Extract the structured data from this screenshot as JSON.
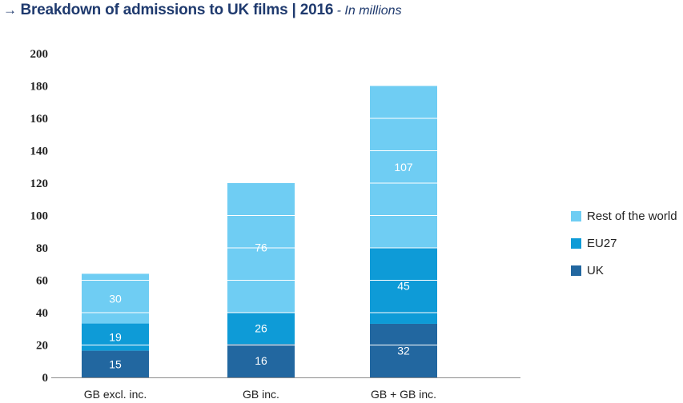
{
  "header": {
    "arrow": "→",
    "title": "Breakdown of admissions to UK films | 2016",
    "subtitle": "- In millions"
  },
  "chart_data": {
    "type": "bar",
    "stacked": true,
    "title": "Breakdown of admissions to UK films | 2016",
    "subtitle": "In millions",
    "categories": [
      "GB excl. inc.",
      "GB inc.",
      "GB + GB inc."
    ],
    "series": [
      {
        "name": "UK",
        "values": [
          15,
          16,
          32
        ],
        "color": "#2267a0"
      },
      {
        "name": "EU27",
        "values": [
          19,
          26,
          45
        ],
        "color": "#0e9bd7"
      },
      {
        "name": "Rest of the world",
        "values": [
          30,
          76,
          107
        ],
        "color": "#6fcdf3"
      }
    ],
    "segment_totals": [
      [
        16.5,
        33.3,
        64
      ],
      [
        20.6,
        40.3,
        120
      ],
      [
        33.1,
        80.0,
        180
      ]
    ],
    "yticks": [
      0,
      20,
      40,
      60,
      80,
      100,
      120,
      140,
      160,
      180,
      200
    ],
    "ylim": [
      0,
      200
    ],
    "xlabel": "",
    "ylabel": "",
    "grid": "white lines within bars",
    "legend_position": "right"
  }
}
